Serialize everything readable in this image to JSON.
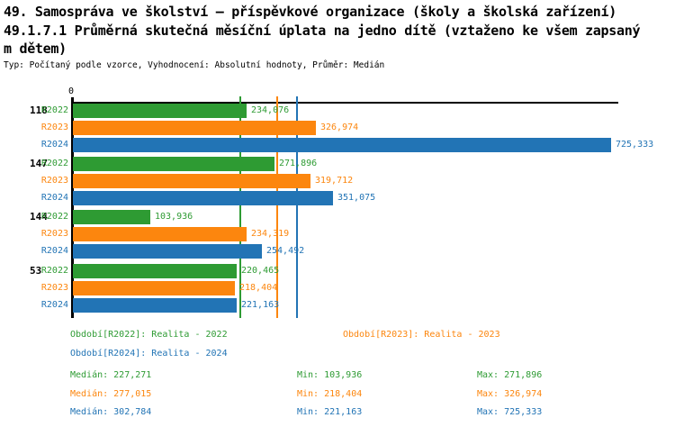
{
  "title": {
    "line1": "49. Samospráva ve školství – příspěvkové organizace (školy a školská zařízení)",
    "line2": "49.1.7.1 Průměrná skutečná měsíční úplata na jedno dítě (vztaženo ke všem zapsaný",
    "line3": "m dětem)",
    "meta": "Typ: Počítaný podle vzorce, Vyhodnocení: Absolutní hodnoty, Průměr: Medián"
  },
  "colors": {
    "r2022": "#2e9b33",
    "r2023": "#fc860e",
    "r2024": "#2274b5",
    "axis": "#000000",
    "background": "#ffffff"
  },
  "chart_data": {
    "type": "bar",
    "orientation": "horizontal",
    "x_origin_label": "0",
    "xlim": [
      0,
      736000
    ],
    "grid": false,
    "categories": [
      "118",
      "147",
      "144",
      "53"
    ],
    "series": [
      {
        "name": "R2022",
        "color": "#2e9b33",
        "values": [
          234076,
          271896,
          103936,
          220465
        ],
        "value_labels": [
          "234,076",
          "271,896",
          "103,936",
          "220,465"
        ],
        "median": 227271,
        "min": 103936,
        "max": 271896
      },
      {
        "name": "R2023",
        "color": "#fc860e",
        "values": [
          326974,
          319712,
          234319,
          218404
        ],
        "value_labels": [
          "326,974",
          "319,712",
          "234,319",
          "218,404"
        ],
        "median": 277015,
        "min": 218404,
        "max": 326974
      },
      {
        "name": "R2024",
        "color": "#2274b5",
        "values": [
          725333,
          351075,
          254492,
          221163
        ],
        "value_labels": [
          "725,333",
          "351,075",
          "254,492",
          "221,163"
        ],
        "median": 302784,
        "min": 221163,
        "max": 725333
      }
    ],
    "median_lines": [
      {
        "series": "R2022",
        "value": 227271,
        "color": "#2e9b33"
      },
      {
        "series": "R2023",
        "value": 277015,
        "color": "#fc860e"
      },
      {
        "series": "R2024",
        "value": 302784,
        "color": "#2274b5"
      }
    ]
  },
  "legend": {
    "items": [
      {
        "text": "Období[R2022]: Realita - 2022",
        "series": "R2022"
      },
      {
        "text": "Období[R2023]: Realita - 2023",
        "series": "R2023"
      },
      {
        "text": "Období[R2024]: Realita - 2024",
        "series": "R2024"
      }
    ]
  },
  "stats": {
    "rows": [
      {
        "series": "R2022",
        "median": "Medián: 227,271",
        "min": "Min: 103,936",
        "max": "Max: 271,896"
      },
      {
        "series": "R2023",
        "median": "Medián: 277,015",
        "min": "Min: 218,404",
        "max": "Max: 326,974"
      },
      {
        "series": "R2024",
        "median": "Medián: 302,784",
        "min": "Min: 221,163",
        "max": "Max: 725,333"
      }
    ]
  }
}
